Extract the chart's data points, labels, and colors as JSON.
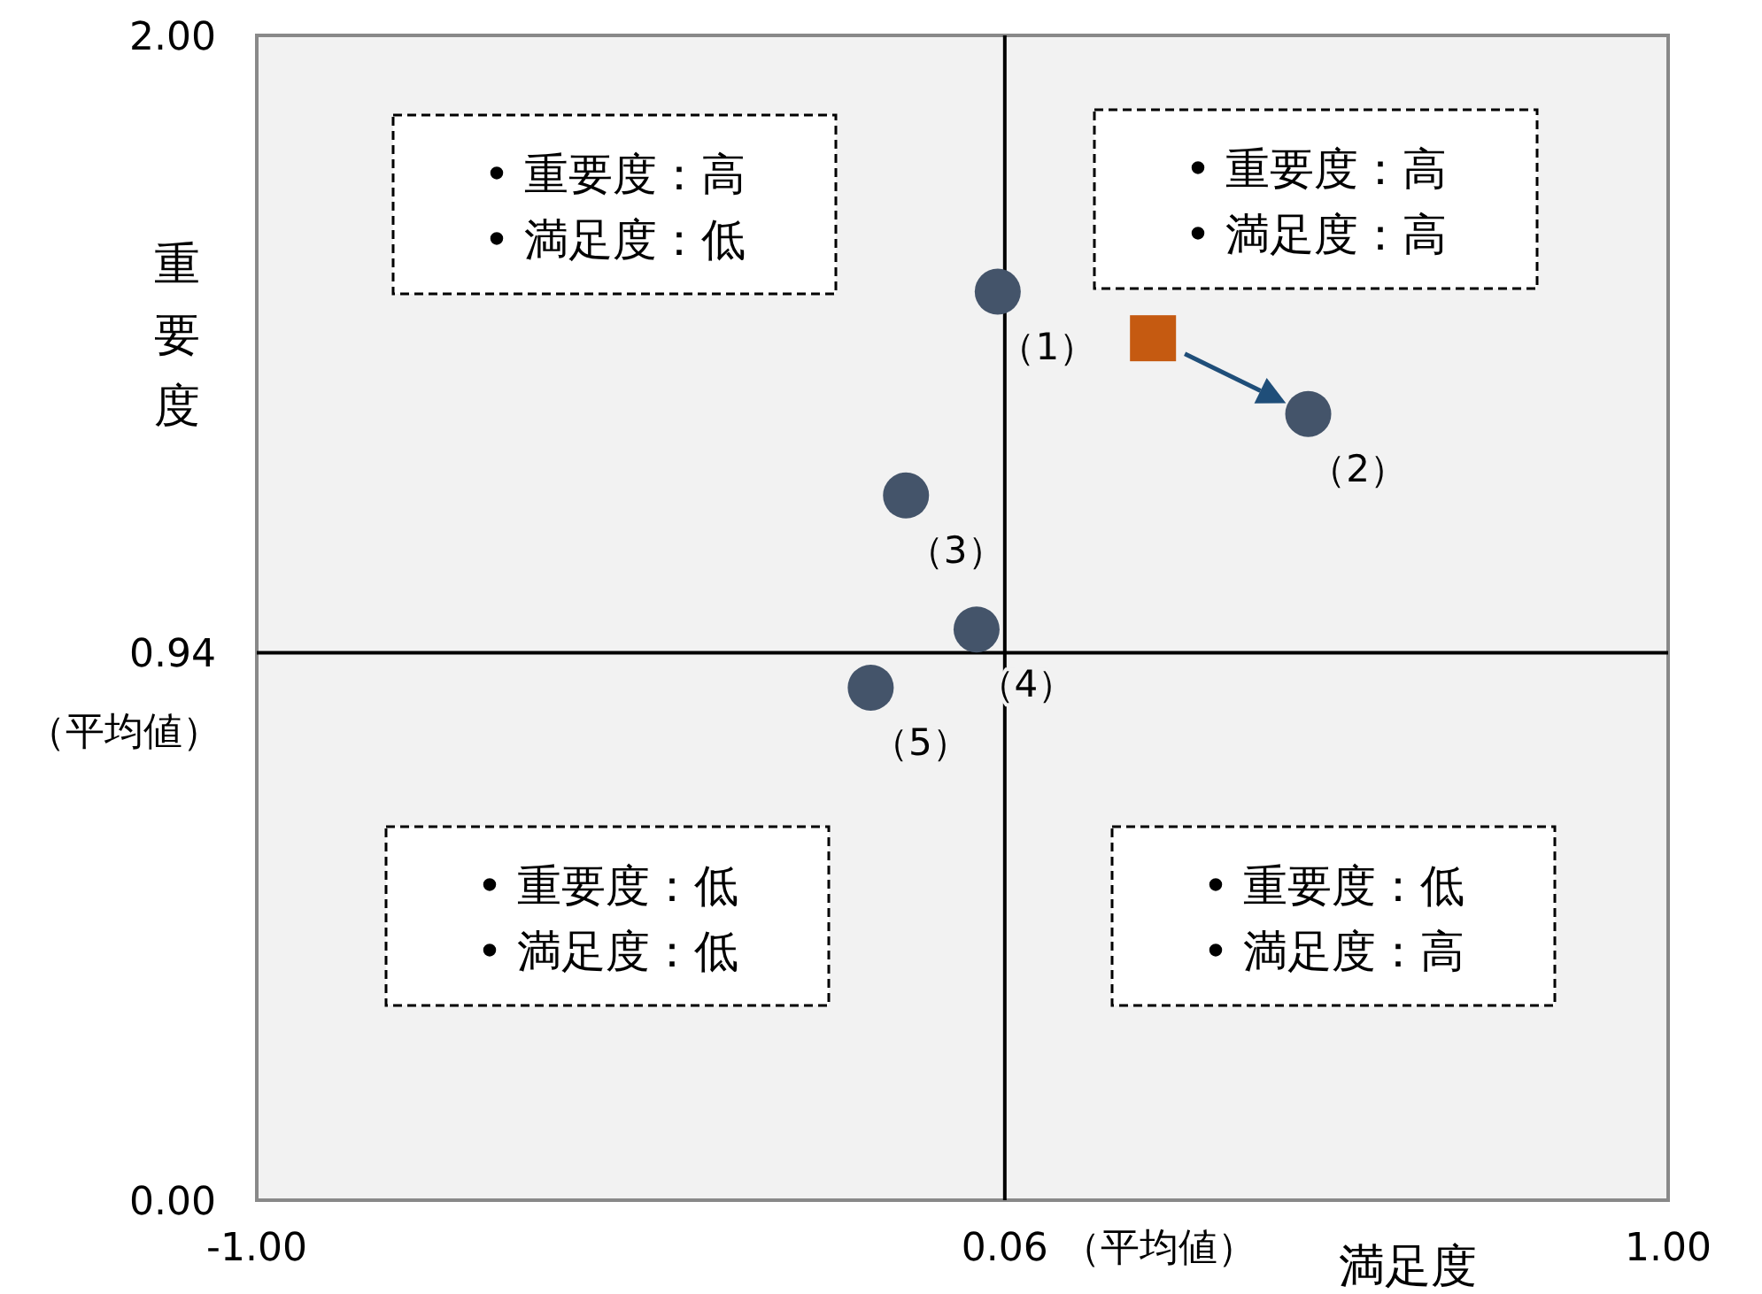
{
  "chart_data": {
    "type": "scatter",
    "xlabel": "満足度",
    "ylabel": "重要度",
    "xlim": [
      -1,
      1
    ],
    "ylim": [
      0,
      2
    ],
    "xticks": [
      {
        "value": -1,
        "label": "-1.00"
      },
      {
        "value": 0.06,
        "label": "0.06"
      },
      {
        "value": 1,
        "label": "1.00"
      }
    ],
    "yticks": [
      {
        "value": 0,
        "label": "0.00"
      },
      {
        "value": 0.94,
        "label": "0.94"
      },
      {
        "value": 2,
        "label": "2.00"
      }
    ],
    "grid": false,
    "ref_lines": [
      {
        "axis": "x",
        "value": 0.06,
        "color": "#000000",
        "label": "（平均値）"
      },
      {
        "axis": "y",
        "value": 0.94,
        "color": "#000000",
        "label": "（平均値）"
      }
    ],
    "series": [
      {
        "color": "#44546a",
        "marker": "circle",
        "x": [
          0.05,
          0.49,
          -0.08,
          0.02,
          -0.13
        ],
        "values": [
          1.56,
          1.35,
          1.21,
          0.98,
          0.88
        ]
      },
      {
        "color": "#c55a11",
        "marker": "square",
        "x": [
          0.27
        ],
        "values": [
          1.48
        ]
      }
    ],
    "annotations": [
      "• 重要度：高\n• 満足度：低",
      "• 重要度：高\n• 満足度：高",
      "• 重要度：低\n• 満足度：低",
      "• 重要度：低\n• 満足度：高",
      {
        "text": "（1）",
        "x": 0.05,
        "y": 1.56
      },
      {
        "text": "（2）",
        "x": 0.49,
        "y": 1.35
      },
      {
        "text": "（3）",
        "x": -0.08,
        "y": 1.21
      },
      {
        "text": "（4）",
        "x": 0.02,
        "y": 0.98
      },
      {
        "text": "（5）",
        "x": -0.13,
        "y": 0.88
      }
    ]
  }
}
